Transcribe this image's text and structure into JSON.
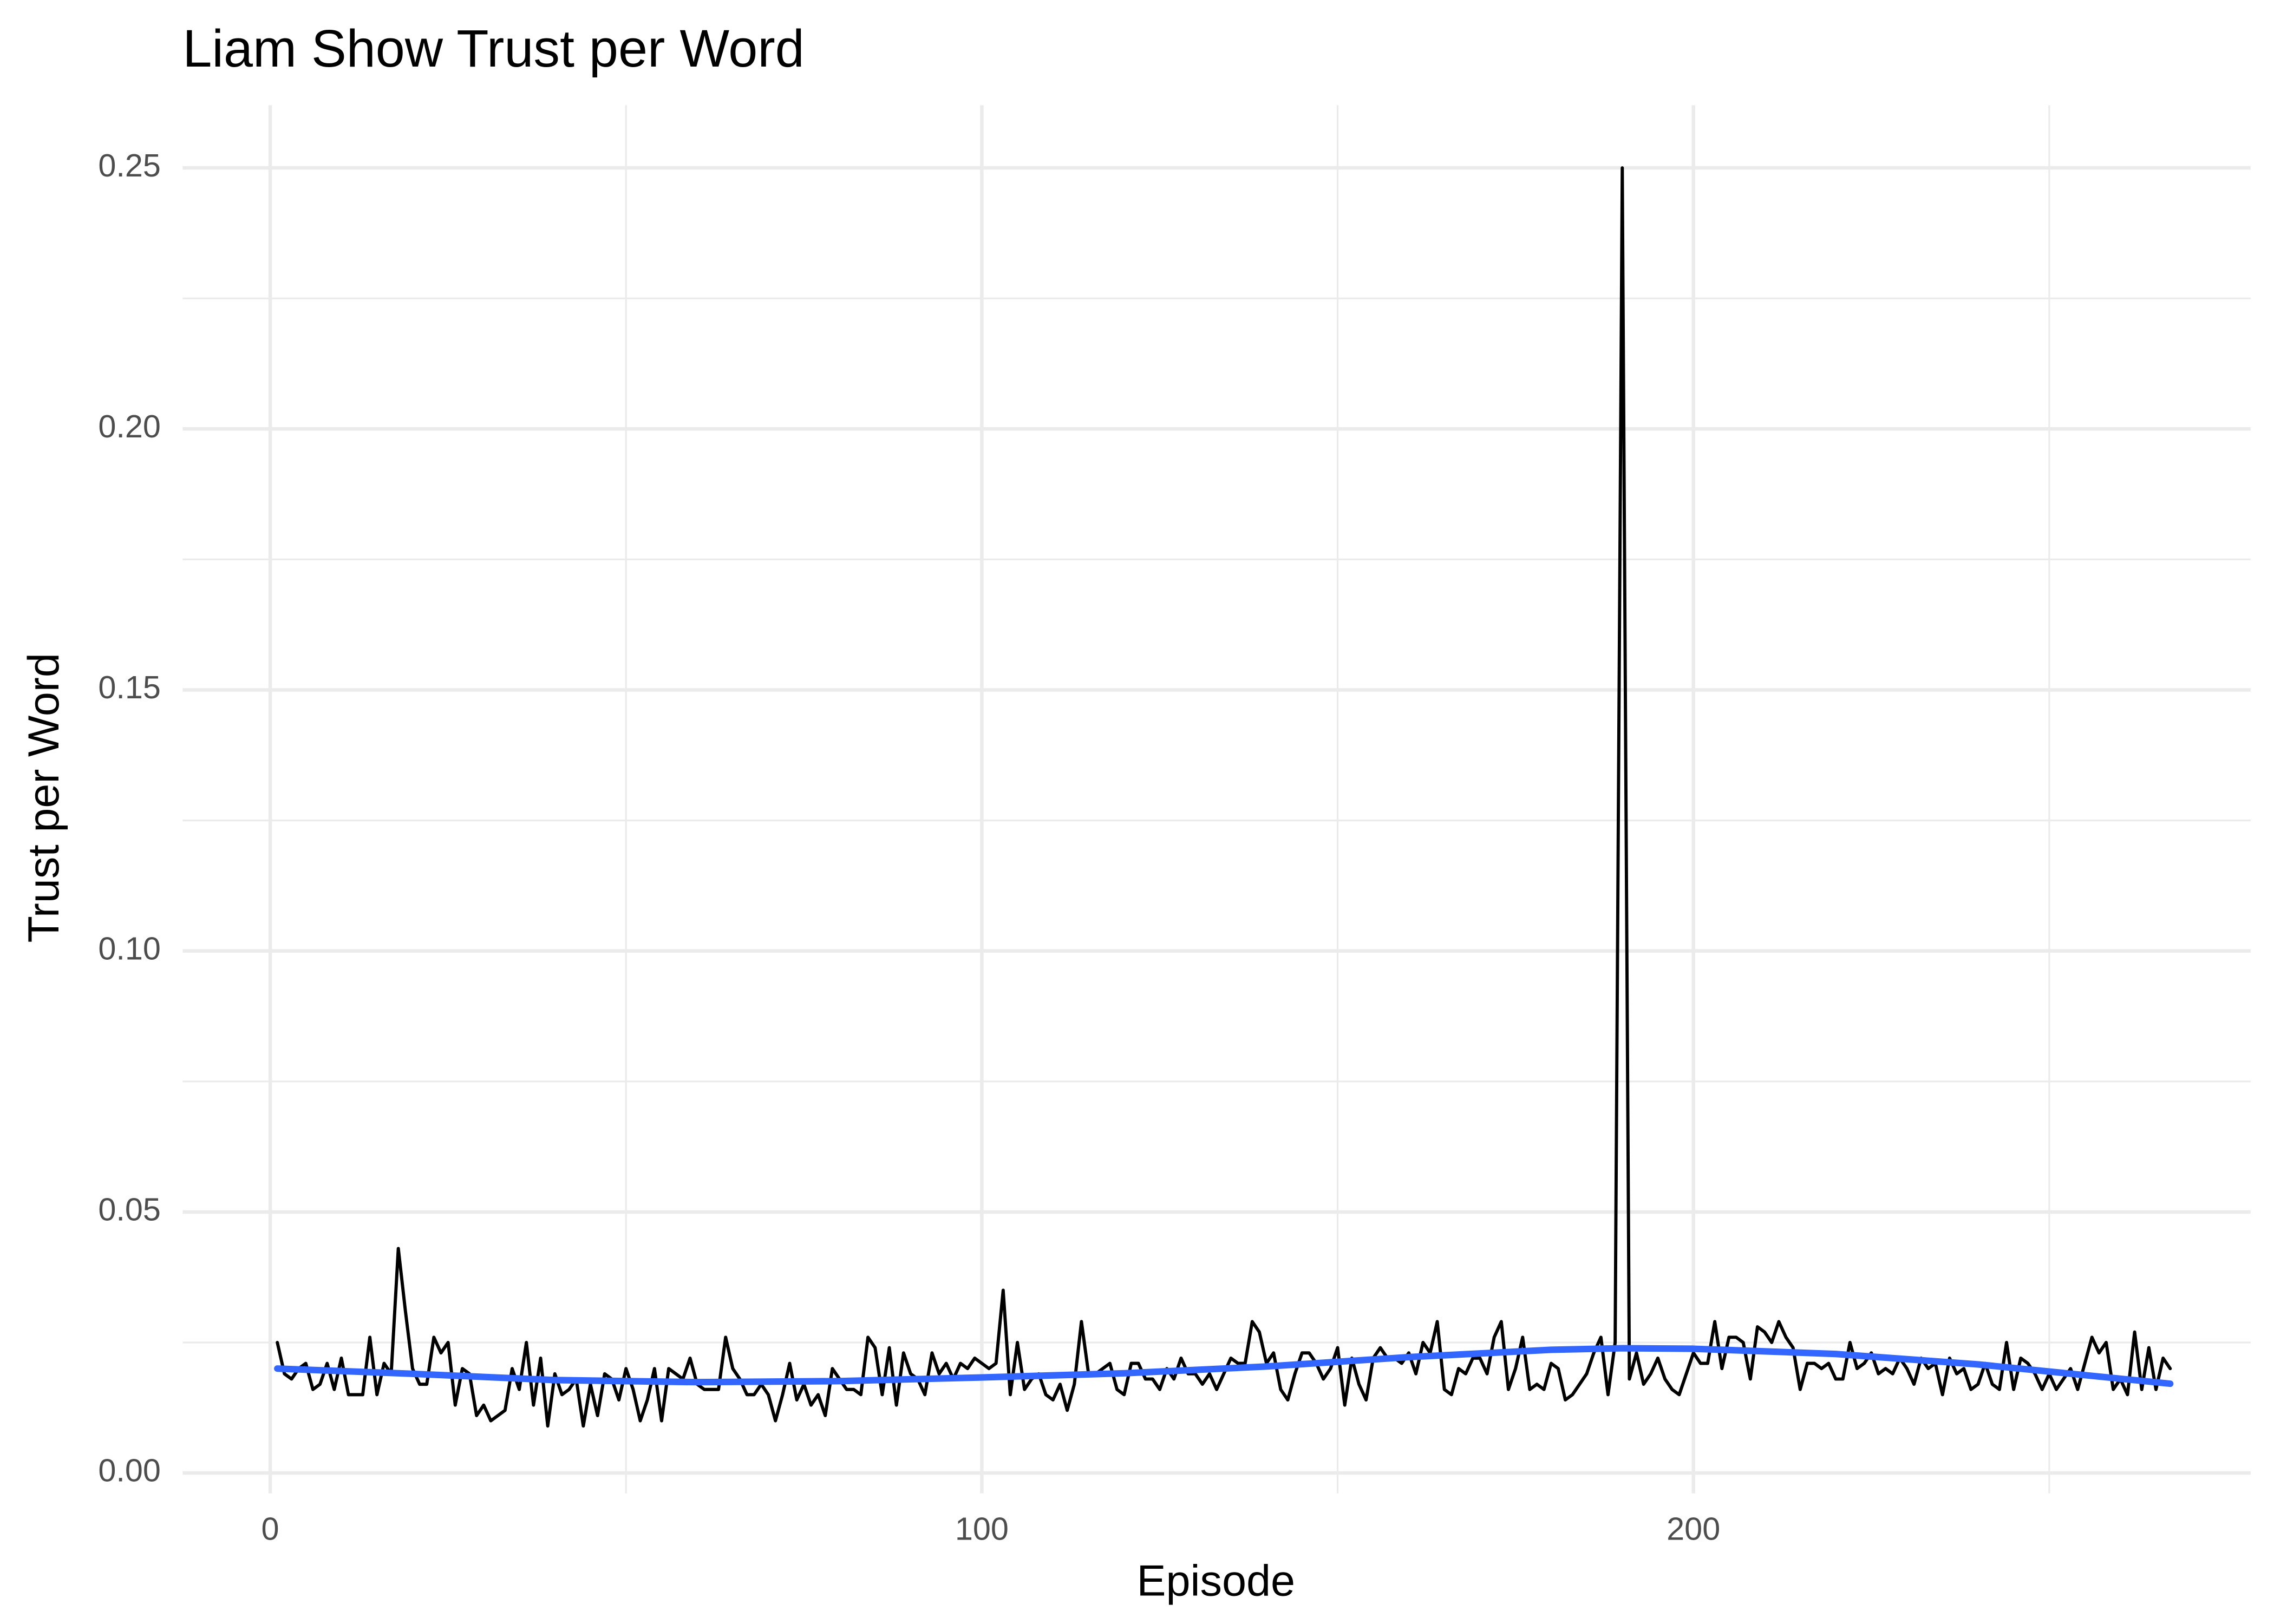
{
  "chart_data": {
    "type": "line",
    "title": "Liam Show Trust per Word",
    "x_label": "Episode",
    "y_label": "Trust per Word",
    "xlim": [
      -12.3,
      278.3
    ],
    "xticks": [
      0,
      100,
      200
    ],
    "ylim": [
      -0.0039,
      0.262
    ],
    "yticks": [
      {
        "value": 0,
        "label": "0.00"
      },
      0.05,
      {
        "value": 0.1,
        "label": "0.10"
      },
      0.15,
      {
        "value": 0.2,
        "label": "0.20"
      },
      0.25
    ],
    "grid": true,
    "series": [
      {
        "color": "#000000",
        "x": [
          1,
          2,
          3,
          4,
          5,
          6,
          7,
          8,
          9,
          10,
          11,
          12,
          13,
          14,
          15,
          16,
          17,
          18,
          19,
          20,
          21,
          22,
          23,
          24,
          25,
          26,
          27,
          28,
          29,
          30,
          31,
          32,
          33,
          34,
          35,
          36,
          37,
          38,
          39,
          40,
          41,
          42,
          43,
          44,
          45,
          46,
          47,
          48,
          49,
          50,
          51,
          52,
          53,
          54,
          55,
          56,
          57,
          58,
          59,
          60,
          61,
          62,
          63,
          64,
          65,
          66,
          67,
          68,
          69,
          70,
          71,
          72,
          73,
          74,
          75,
          76,
          77,
          78,
          79,
          80,
          81,
          82,
          83,
          84,
          85,
          86,
          87,
          88,
          89,
          90,
          91,
          92,
          93,
          94,
          95,
          96,
          97,
          98,
          99,
          100,
          101,
          102,
          103,
          104,
          105,
          106,
          107,
          108,
          109,
          110,
          111,
          112,
          113,
          114,
          115,
          116,
          117,
          118,
          119,
          120,
          121,
          122,
          123,
          124,
          125,
          126,
          127,
          128,
          129,
          130,
          131,
          132,
          133,
          134,
          135,
          136,
          137,
          138,
          139,
          140,
          141,
          142,
          143,
          144,
          145,
          146,
          147,
          148,
          149,
          150,
          151,
          152,
          153,
          154,
          155,
          156,
          157,
          158,
          159,
          160,
          161,
          162,
          163,
          164,
          165,
          166,
          167,
          168,
          169,
          170,
          171,
          172,
          173,
          174,
          175,
          176,
          177,
          178,
          179,
          180,
          181,
          182,
          183,
          184,
          185,
          186,
          187,
          188,
          189,
          190,
          191,
          192,
          193,
          194,
          195,
          196,
          197,
          198,
          199,
          200,
          201,
          202,
          203,
          204,
          205,
          206,
          207,
          208,
          209,
          210,
          211,
          212,
          213,
          214,
          215,
          216,
          217,
          218,
          219,
          220,
          221,
          222,
          223,
          224,
          225,
          226,
          227,
          228,
          229,
          230,
          231,
          232,
          233,
          234,
          235,
          236,
          237,
          238,
          239,
          240,
          241,
          242,
          243,
          244,
          245,
          246,
          247,
          248,
          249,
          250,
          251,
          252,
          253,
          254,
          255,
          256,
          257,
          258,
          259,
          260,
          261,
          262,
          263,
          264,
          265,
          266,
          267
        ],
        "values": [
          0.025,
          0.019,
          0.018,
          0.02,
          0.021,
          0.016,
          0.017,
          0.021,
          0.016,
          0.022,
          0.015,
          0.015,
          0.015,
          0.026,
          0.015,
          0.021,
          0.019,
          0.043,
          0.031,
          0.02,
          0.017,
          0.017,
          0.026,
          0.023,
          0.025,
          0.013,
          0.02,
          0.019,
          0.011,
          0.013,
          0.01,
          0.011,
          0.012,
          0.02,
          0.016,
          0.025,
          0.013,
          0.022,
          0.009,
          0.019,
          0.015,
          0.016,
          0.018,
          0.009,
          0.017,
          0.011,
          0.019,
          0.018,
          0.014,
          0.02,
          0.016,
          0.01,
          0.014,
          0.02,
          0.01,
          0.02,
          0.019,
          0.018,
          0.022,
          0.017,
          0.016,
          0.016,
          0.016,
          0.026,
          0.02,
          0.018,
          0.015,
          0.015,
          0.017,
          0.015,
          0.01,
          0.015,
          0.021,
          0.014,
          0.017,
          0.013,
          0.015,
          0.011,
          0.02,
          0.018,
          0.016,
          0.016,
          0.015,
          0.026,
          0.024,
          0.015,
          0.024,
          0.013,
          0.023,
          0.019,
          0.018,
          0.015,
          0.023,
          0.019,
          0.021,
          0.018,
          0.021,
          0.02,
          0.022,
          0.021,
          0.02,
          0.021,
          0.035,
          0.015,
          0.025,
          0.016,
          0.018,
          0.019,
          0.015,
          0.014,
          0.017,
          0.012,
          0.017,
          0.029,
          0.019,
          0.019,
          0.02,
          0.021,
          0.016,
          0.015,
          0.021,
          0.021,
          0.018,
          0.018,
          0.016,
          0.02,
          0.018,
          0.022,
          0.019,
          0.019,
          0.017,
          0.019,
          0.016,
          0.019,
          0.022,
          0.021,
          0.021,
          0.029,
          0.027,
          0.021,
          0.023,
          0.016,
          0.014,
          0.019,
          0.023,
          0.023,
          0.021,
          0.018,
          0.02,
          0.024,
          0.013,
          0.022,
          0.017,
          0.014,
          0.022,
          0.024,
          0.022,
          0.022,
          0.021,
          0.023,
          0.019,
          0.025,
          0.023,
          0.029,
          0.016,
          0.015,
          0.02,
          0.019,
          0.022,
          0.022,
          0.019,
          0.026,
          0.029,
          0.016,
          0.02,
          0.026,
          0.016,
          0.017,
          0.016,
          0.021,
          0.02,
          0.014,
          0.015,
          0.017,
          0.019,
          0.023,
          0.026,
          0.015,
          0.025,
          0.25,
          0.018,
          0.023,
          0.017,
          0.019,
          0.022,
          0.018,
          0.016,
          0.015,
          0.019,
          0.023,
          0.021,
          0.021,
          0.029,
          0.02,
          0.026,
          0.026,
          0.025,
          0.018,
          0.028,
          0.027,
          0.025,
          0.029,
          0.026,
          0.024,
          0.016,
          0.021,
          0.021,
          0.02,
          0.021,
          0.018,
          0.018,
          0.025,
          0.02,
          0.021,
          0.023,
          0.019,
          0.02,
          0.019,
          0.022,
          0.02,
          0.017,
          0.022,
          0.02,
          0.021,
          0.015,
          0.022,
          0.019,
          0.02,
          0.016,
          0.017,
          0.021,
          0.017,
          0.016,
          0.025,
          0.016,
          0.022,
          0.021,
          0.019,
          0.016,
          0.019,
          0.016,
          0.018,
          0.02,
          0.016,
          0.021,
          0.026,
          0.023,
          0.025,
          0.016,
          0.018,
          0.015,
          0.027,
          0.016,
          0.024,
          0.016,
          0.022,
          0.02
        ]
      },
      {
        "color": "#3366ff",
        "x": [
          1,
          20,
          40,
          60,
          80,
          100,
          120,
          140,
          160,
          180,
          190,
          200,
          220,
          240,
          267
        ],
        "values": [
          0.02,
          0.019,
          0.0178,
          0.0174,
          0.0176,
          0.0183,
          0.0191,
          0.0204,
          0.0222,
          0.0236,
          0.0239,
          0.0238,
          0.0228,
          0.0208,
          0.0171
        ]
      }
    ]
  }
}
